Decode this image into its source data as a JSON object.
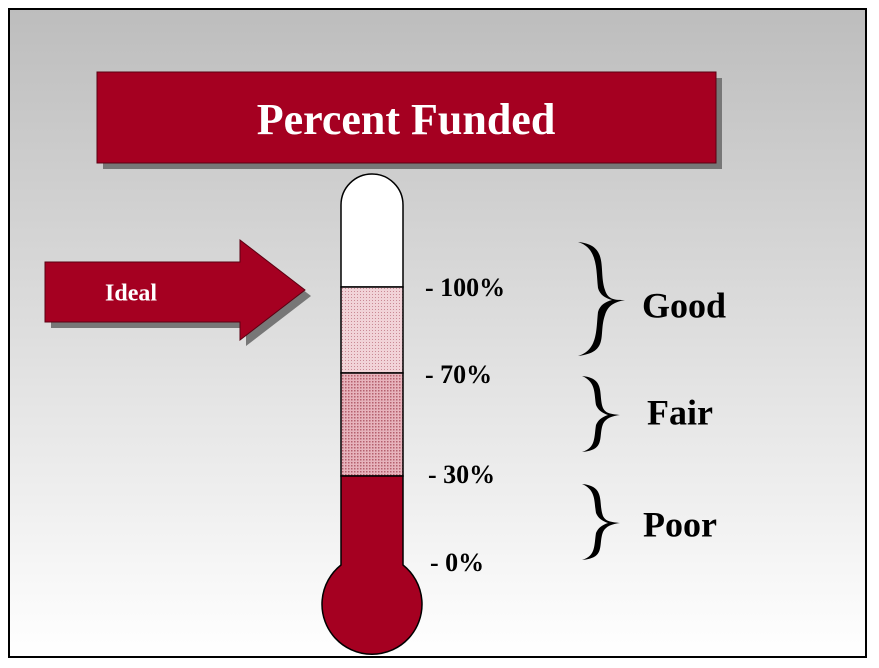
{
  "title": "Percent Funded",
  "arrow": {
    "label": "Ideal"
  },
  "scale": [
    "- 100%",
    "- 70%",
    "- 30%",
    "- 0%"
  ],
  "zones": [
    "Good",
    "Fair",
    "Poor"
  ]
}
